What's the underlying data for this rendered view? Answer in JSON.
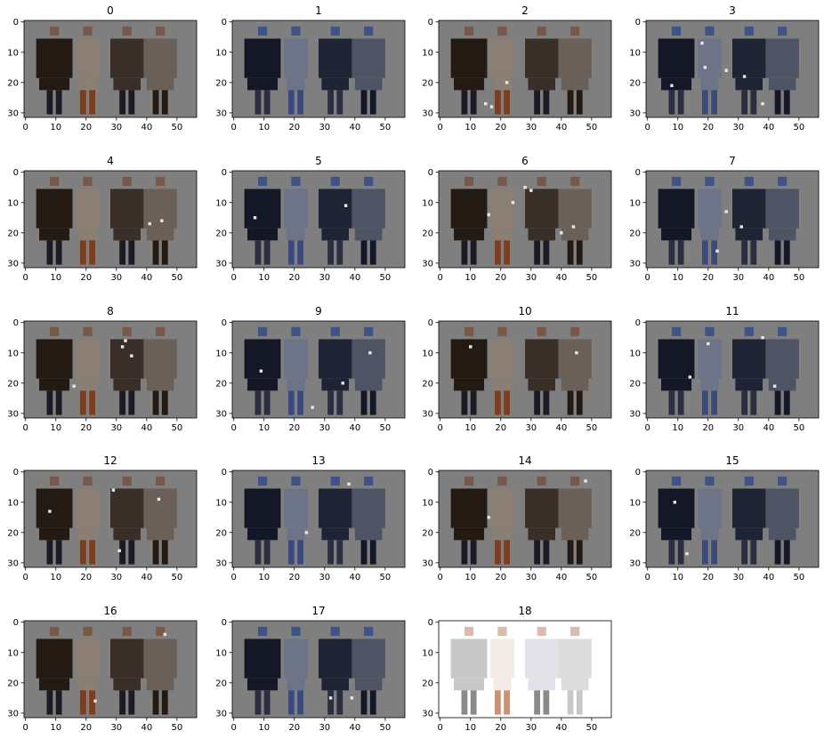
{
  "figure": {
    "background": "#ffffff"
  },
  "chart_data": {
    "type": "image-grid",
    "rows": 5,
    "cols": 4,
    "image_shape": [
      32,
      57
    ],
    "xlim": [
      -0.5,
      56.5
    ],
    "ylim": [
      31.5,
      -0.5
    ],
    "xticks": [
      0,
      10,
      20,
      30,
      40,
      50
    ],
    "yticks": [
      0,
      10,
      20,
      30
    ],
    "panels": [
      {
        "title": "0",
        "bg": "#7f7f7f",
        "tint": "warm",
        "highlights": 0
      },
      {
        "title": "1",
        "bg": "#7f7f7f",
        "tint": "blue",
        "highlights": 0
      },
      {
        "title": "2",
        "bg": "#7f7f7f",
        "tint": "warm",
        "highlights": 3
      },
      {
        "title": "3",
        "bg": "#7f7f7f",
        "tint": "blue",
        "highlights": 6
      },
      {
        "title": "4",
        "bg": "#7f7f7f",
        "tint": "warm",
        "highlights": 2
      },
      {
        "title": "5",
        "bg": "#7f7f7f",
        "tint": "blue",
        "highlights": 2
      },
      {
        "title": "6",
        "bg": "#7f7f7f",
        "tint": "warm",
        "highlights": 6
      },
      {
        "title": "7",
        "bg": "#7f7f7f",
        "tint": "blue",
        "highlights": 3
      },
      {
        "title": "8",
        "bg": "#7f7f7f",
        "tint": "warm",
        "highlights": 4
      },
      {
        "title": "9",
        "bg": "#7f7f7f",
        "tint": "blue",
        "highlights": 4
      },
      {
        "title": "10",
        "bg": "#7f7f7f",
        "tint": "warm",
        "highlights": 2
      },
      {
        "title": "11",
        "bg": "#7f7f7f",
        "tint": "blue",
        "highlights": 4
      },
      {
        "title": "12",
        "bg": "#7f7f7f",
        "tint": "warm",
        "highlights": 4
      },
      {
        "title": "13",
        "bg": "#7f7f7f",
        "tint": "blue",
        "highlights": 2
      },
      {
        "title": "14",
        "bg": "#7f7f7f",
        "tint": "warm",
        "highlights": 2
      },
      {
        "title": "15",
        "bg": "#7f7f7f",
        "tint": "blue",
        "highlights": 2
      },
      {
        "title": "16",
        "bg": "#7f7f7f",
        "tint": "warm",
        "highlights": 2
      },
      {
        "title": "17",
        "bg": "#7f7f7f",
        "tint": "blue",
        "highlights": 2
      },
      {
        "title": "18",
        "bg": "#ffffff",
        "tint": "light",
        "highlights": 0
      }
    ],
    "palettes": {
      "warm": {
        "suit": "#241a14",
        "dress": "#8b7f74",
        "jacket": "#3a2f28",
        "coat": "#6a6058",
        "skin": "#7a5848",
        "legs": "#1c1a24",
        "shoe": "#7a3e22"
      },
      "blue": {
        "suit": "#141826",
        "dress": "#6e7488",
        "jacket": "#1e2434",
        "coat": "#4e5464",
        "skin": "#3e5486",
        "legs": "#2a2e3e",
        "shoe": "#3a4a7a"
      },
      "light": {
        "suit": "#c8c8c8",
        "dress": "#f3ece6",
        "jacket": "#e2e2e8",
        "coat": "#dcdcdc",
        "skin": "#d9bcae",
        "legs": "#8a8a8a",
        "shoe": "#c79276"
      }
    }
  }
}
